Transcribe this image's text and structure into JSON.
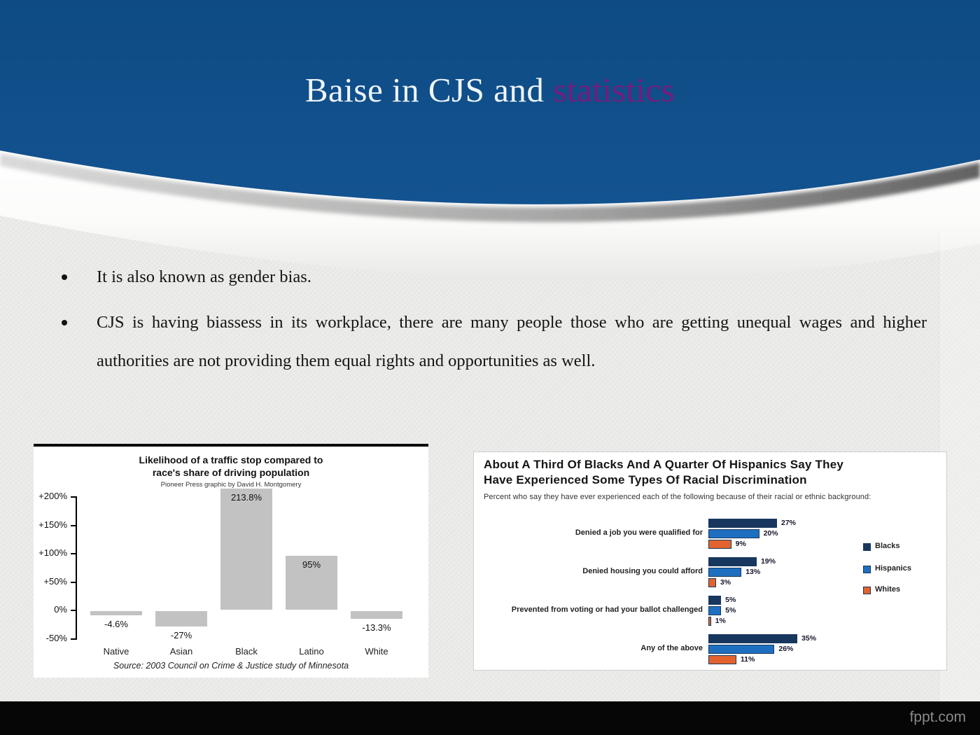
{
  "slide": {
    "title": {
      "part1": "Baise in CJS and",
      "part2": "statistics"
    },
    "bullets": [
      "It is also known as gender bias.",
      "CJS is having biassess in its workplace, there are many people those who are getting unequal wages and higher authorities are not providing them equal rights and opportunities as well."
    ],
    "footer": "fppt.com"
  },
  "colors": {
    "header_blue": "#10508c",
    "title_purple": "#771a7e",
    "left_bar_gray": "#c2c2c2",
    "blacks_navy": "#17375e",
    "hispanics_blue": "#1f6fc0",
    "whites_orange": "#e2632d"
  },
  "chart_data": [
    {
      "type": "bar",
      "title": "Likelihood of a traffic stop compared to race's share of driving population",
      "title_lines": [
        "Likelihood of a traffic stop compared to",
        "race's share of driving population"
      ],
      "subtitle": "Pioneer Press graphic by David H. Montgomery",
      "categories": [
        "Native",
        "Asian",
        "Black",
        "Latino",
        "White"
      ],
      "values": [
        -4.6,
        -27,
        213.8,
        95,
        -13.3
      ],
      "value_labels": [
        "-4.6%",
        "-27%",
        "213.8%",
        "95%",
        "-13.3%"
      ],
      "yticks": [
        "+200%",
        "+150%",
        "+100%",
        "+50%",
        "0%",
        "-50%"
      ],
      "ylim": [
        -50,
        200
      ],
      "grid": false,
      "bar_color": "#c2c2c2",
      "source": "Source: 2003 Council on Crime & Justice study of Minnesota"
    },
    {
      "type": "bar",
      "orientation": "horizontal-grouped",
      "title": "About A Third Of Blacks And A Quarter Of Hispanics Say They Have Experienced Some Types Of Racial Discrimination",
      "title_lines": [
        "About A Third Of Blacks And A Quarter Of Hispanics Say They",
        "Have Experienced Some Types Of Racial Discrimination"
      ],
      "subtitle": "Percent who say they have ever experienced each of the following because of their racial or ethnic background:",
      "categories": [
        "Denied a job you were qualified for",
        "Denied housing you could afford",
        "Prevented from voting or had your ballot challenged",
        "Any of the above"
      ],
      "series": [
        {
          "name": "Blacks",
          "color": "#17375e",
          "values": [
            27,
            19,
            5,
            35
          ]
        },
        {
          "name": "Hispanics",
          "color": "#1f6fc0",
          "values": [
            20,
            13,
            5,
            26
          ]
        },
        {
          "name": "Whites",
          "color": "#e2632d",
          "values": [
            9,
            3,
            1,
            11
          ]
        }
      ],
      "value_suffix": "%",
      "xlim": [
        0,
        40
      ],
      "legend_position": "right"
    }
  ]
}
